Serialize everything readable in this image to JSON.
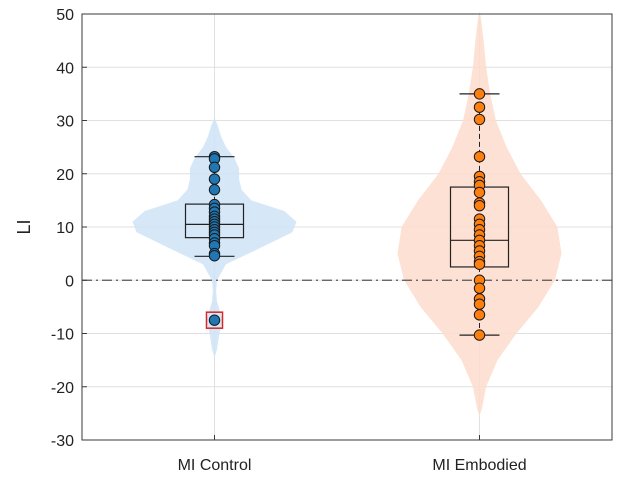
{
  "chart_data": {
    "type": "violin",
    "title": "",
    "xlabel": "",
    "ylabel": "LI",
    "ylim": [
      -30,
      50
    ],
    "yticks": [
      -30,
      -20,
      -10,
      0,
      10,
      20,
      30,
      40,
      50
    ],
    "ytick_labels": [
      "-30",
      "-20",
      "-10",
      "0",
      "10",
      "20",
      "30",
      "40",
      "50"
    ],
    "categories": [
      "MI Control",
      "MI Embodied"
    ],
    "grid": true,
    "reference_line": {
      "y": 0,
      "style": "dash-dot"
    },
    "series": [
      {
        "category": "MI Control",
        "color": "#1f77b4",
        "violin_color": "#cfe3f6",
        "box": {
          "q1": 8,
          "median": 10.5,
          "q3": 14.3,
          "whisker_low": 4.5,
          "whisker_high": 23.2
        },
        "points": [
          23.2,
          22.8,
          21.2,
          19.0,
          17.0,
          14.2,
          13.5,
          12.8,
          12.0,
          11.5,
          11.0,
          10.5,
          10.0,
          9.5,
          9.0,
          8.5,
          7.8,
          7.0,
          6.5,
          5.0,
          4.6
        ],
        "outliers": [
          -7.5
        ],
        "density": [
          [
            -13,
            0.03
          ],
          [
            -10,
            0.06
          ],
          [
            -7.5,
            0.1
          ],
          [
            -4,
            0.03
          ],
          [
            -2,
            0.02
          ],
          [
            0,
            0.03
          ],
          [
            3,
            0.14
          ],
          [
            6,
            0.55
          ],
          [
            9,
            0.95
          ],
          [
            11,
            1.0
          ],
          [
            13,
            0.85
          ],
          [
            15,
            0.45
          ],
          [
            17,
            0.33
          ],
          [
            19,
            0.3
          ],
          [
            21,
            0.3
          ],
          [
            23,
            0.24
          ],
          [
            25,
            0.14
          ],
          [
            27,
            0.08
          ],
          [
            29,
            0.04
          ]
        ]
      },
      {
        "category": "MI Embodied",
        "color": "#ff7f0e",
        "violin_color": "#fddccd",
        "box": {
          "q1": 2.5,
          "median": 7.5,
          "q3": 17.5,
          "whisker_low": -10.3,
          "whisker_high": 35.0
        },
        "points": [
          35.0,
          32.5,
          30.2,
          23.2,
          19.5,
          18.5,
          17.8,
          16.5,
          14.5,
          14.0,
          11.5,
          10.5,
          9.5,
          8.5,
          7.5,
          6.5,
          5.5,
          4.5,
          3.5,
          3.0,
          0.0,
          -1.5,
          -3.5,
          -4.5,
          -6.5,
          -10.3
        ],
        "outliers": [],
        "density": [
          [
            -24,
            0.03
          ],
          [
            -20,
            0.08
          ],
          [
            -15,
            0.22
          ],
          [
            -10,
            0.45
          ],
          [
            -5,
            0.72
          ],
          [
            0,
            0.92
          ],
          [
            5,
            1.0
          ],
          [
            10,
            0.95
          ],
          [
            15,
            0.75
          ],
          [
            20,
            0.5
          ],
          [
            25,
            0.33
          ],
          [
            30,
            0.2
          ],
          [
            35,
            0.13
          ],
          [
            40,
            0.08
          ],
          [
            45,
            0.05
          ],
          [
            49,
            0.02
          ]
        ]
      }
    ]
  }
}
